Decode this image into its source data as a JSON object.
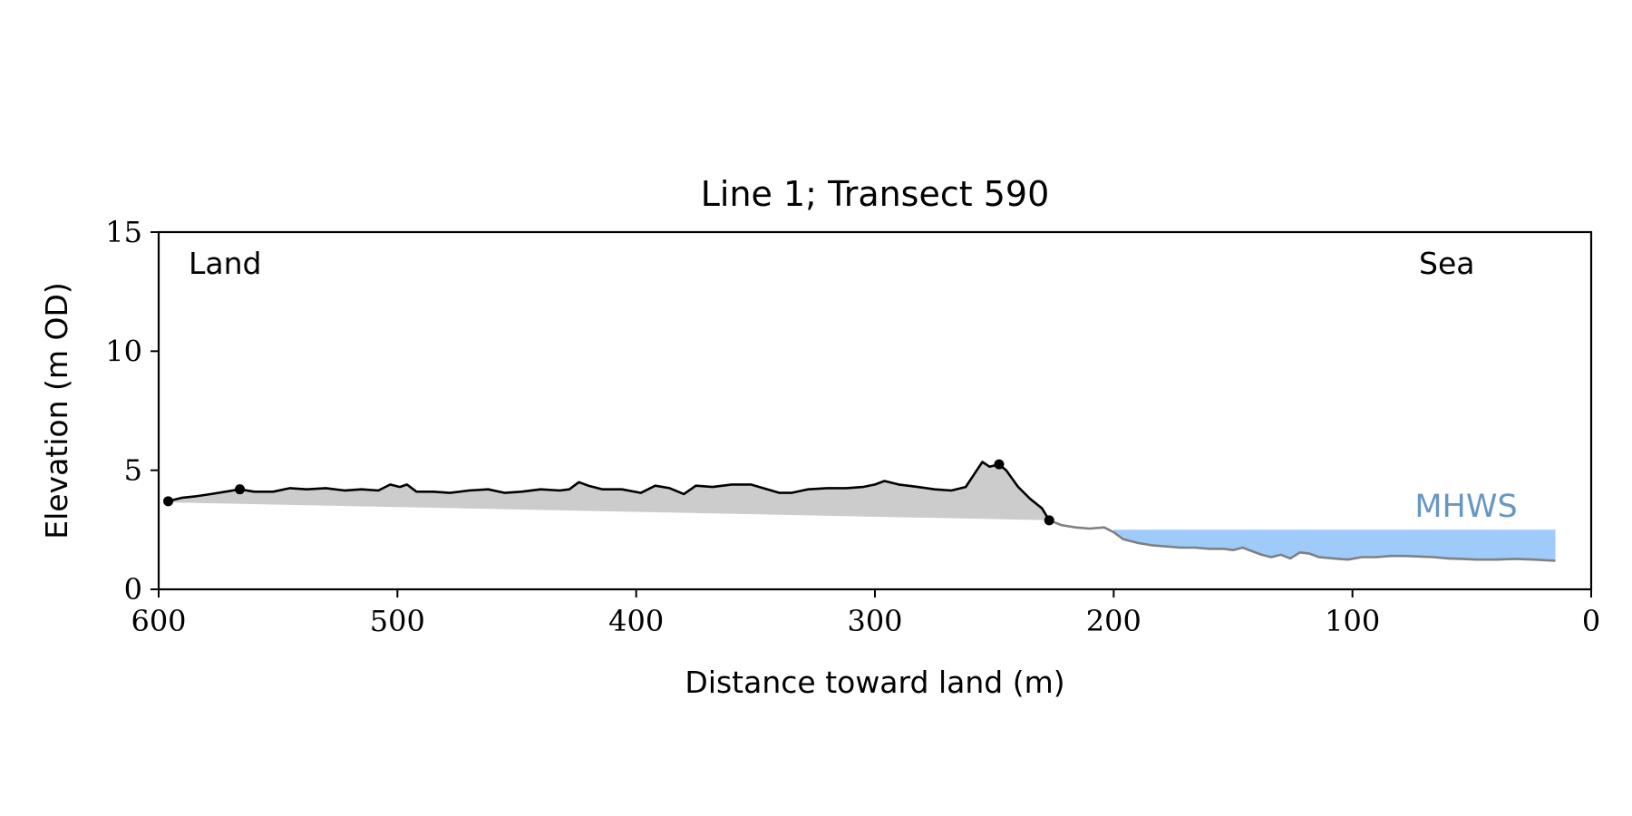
{
  "chart_data": {
    "type": "area",
    "title": "Line 1; Transect 590",
    "xlabel": "Distance toward land (m)",
    "ylabel": "Elevation (m OD)",
    "xlim": [
      600,
      0
    ],
    "ylim": [
      0,
      15
    ],
    "x_ticks": [
      600,
      500,
      400,
      300,
      200,
      100,
      0
    ],
    "y_ticks": [
      0,
      5,
      10,
      15
    ],
    "grid": false,
    "annotations": {
      "land": "Land",
      "sea": "Sea",
      "mhws": "MHWS"
    },
    "mhws_level": 2.5,
    "mhws_range": [
      200,
      15
    ],
    "series": [
      {
        "role": "profile-land",
        "color": "#000000",
        "points": [
          [
            596,
            3.7
          ],
          [
            590,
            3.85
          ],
          [
            585,
            3.9
          ],
          [
            578,
            4.0
          ],
          [
            572,
            4.1
          ],
          [
            566,
            4.2
          ],
          [
            560,
            4.1
          ],
          [
            552,
            4.1
          ],
          [
            545,
            4.25
          ],
          [
            538,
            4.2
          ],
          [
            530,
            4.25
          ],
          [
            522,
            4.15
          ],
          [
            515,
            4.2
          ],
          [
            508,
            4.15
          ],
          [
            503,
            4.4
          ],
          [
            499,
            4.3
          ],
          [
            496,
            4.4
          ],
          [
            492,
            4.1
          ],
          [
            485,
            4.1
          ],
          [
            478,
            4.05
          ],
          [
            470,
            4.15
          ],
          [
            462,
            4.2
          ],
          [
            455,
            4.05
          ],
          [
            448,
            4.1
          ],
          [
            440,
            4.2
          ],
          [
            432,
            4.15
          ],
          [
            428,
            4.2
          ],
          [
            424,
            4.5
          ],
          [
            420,
            4.35
          ],
          [
            414,
            4.2
          ],
          [
            406,
            4.2
          ],
          [
            398,
            4.05
          ],
          [
            392,
            4.35
          ],
          [
            386,
            4.25
          ],
          [
            380,
            4.0
          ],
          [
            375,
            4.35
          ],
          [
            368,
            4.3
          ],
          [
            360,
            4.4
          ],
          [
            352,
            4.4
          ],
          [
            345,
            4.2
          ],
          [
            340,
            4.05
          ],
          [
            335,
            4.05
          ],
          [
            328,
            4.2
          ],
          [
            320,
            4.25
          ],
          [
            312,
            4.25
          ],
          [
            305,
            4.3
          ],
          [
            300,
            4.4
          ],
          [
            296,
            4.55
          ],
          [
            290,
            4.4
          ],
          [
            282,
            4.3
          ],
          [
            275,
            4.2
          ],
          [
            268,
            4.15
          ],
          [
            262,
            4.3
          ],
          [
            258,
            4.9
          ],
          [
            255,
            5.35
          ],
          [
            252,
            5.15
          ],
          [
            248,
            5.25
          ],
          [
            245,
            5.0
          ],
          [
            240,
            4.3
          ],
          [
            235,
            3.8
          ],
          [
            230,
            3.4
          ],
          [
            227,
            2.9
          ]
        ],
        "markers": [
          [
            596,
            3.7
          ],
          [
            566,
            4.2
          ],
          [
            248,
            5.25
          ],
          [
            227,
            2.9
          ]
        ]
      },
      {
        "role": "profile-shore",
        "color": "#808080",
        "points": [
          [
            227,
            2.9
          ],
          [
            222,
            2.7
          ],
          [
            216,
            2.6
          ],
          [
            210,
            2.55
          ],
          [
            204,
            2.6
          ],
          [
            200,
            2.4
          ],
          [
            196,
            2.1
          ],
          [
            190,
            1.95
          ],
          [
            184,
            1.85
          ],
          [
            178,
            1.8
          ],
          [
            172,
            1.75
          ],
          [
            166,
            1.75
          ],
          [
            160,
            1.7
          ],
          [
            154,
            1.7
          ],
          [
            150,
            1.65
          ],
          [
            146,
            1.75
          ],
          [
            142,
            1.6
          ],
          [
            138,
            1.45
          ],
          [
            134,
            1.35
          ],
          [
            130,
            1.45
          ],
          [
            126,
            1.3
          ],
          [
            122,
            1.55
          ],
          [
            118,
            1.5
          ],
          [
            114,
            1.35
          ],
          [
            108,
            1.3
          ],
          [
            102,
            1.25
          ],
          [
            96,
            1.35
          ],
          [
            90,
            1.35
          ],
          [
            84,
            1.4
          ],
          [
            78,
            1.4
          ],
          [
            72,
            1.38
          ],
          [
            66,
            1.35
          ],
          [
            60,
            1.3
          ],
          [
            54,
            1.28
          ],
          [
            48,
            1.25
          ],
          [
            40,
            1.25
          ],
          [
            32,
            1.28
          ],
          [
            24,
            1.25
          ],
          [
            15,
            1.2
          ]
        ]
      },
      {
        "role": "baseline",
        "color": "#cccccc",
        "points": [
          [
            596,
            3.65
          ],
          [
            227,
            2.9
          ]
        ]
      }
    ],
    "colors": {
      "profile": "#000000",
      "shore": "#808080",
      "fill": "#cccccc",
      "water": "#9fcbfa",
      "mhws_text": "#6897c2"
    }
  }
}
